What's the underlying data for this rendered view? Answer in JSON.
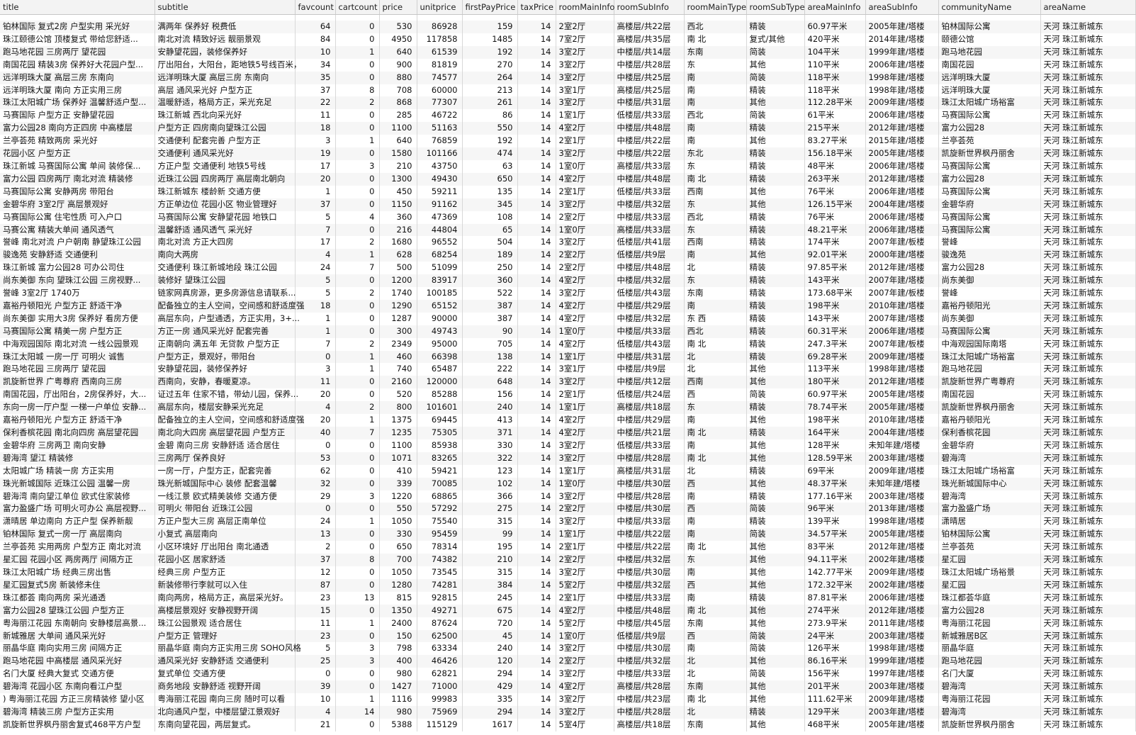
{
  "columns": [
    "title",
    "subtitle",
    "favcount",
    "cartcount",
    "price",
    "unitprice",
    "firstPayPrice",
    "taxPrice",
    "roomMainInfo",
    "roomSubInfo",
    "roomMainType",
    "roomSubType",
    "areaMainInfo",
    "areaSubInfo",
    "communityName",
    "areaName"
  ],
  "rows": [
    [
      "铂林国际 复式2房 户型实用 采光好",
      "满两年 保养好 税费低",
      "64",
      "0",
      "530",
      "86928",
      "159",
      "14",
      "2室2厅",
      "高楼层/共22层",
      "西北",
      "精装",
      "60.97平米",
      "2005年建/塔楼",
      "铂林国际公寓",
      "天河 珠江新城东"
    ],
    [
      "珠江颐德公馆 顶楼复式 带给您舒适...",
      "南北对流 精致好远 靓丽景观",
      "84",
      "0",
      "4950",
      "117858",
      "1485",
      "14",
      "7室2厅",
      "高楼层/共35层",
      "南 北",
      "复式/其他",
      "420平米",
      "2014年建/塔楼",
      "颐德公馆",
      "天河 珠江新城东"
    ],
    [
      "跑马地花园 三房两厅 望花园",
      "安静望花园，装修保养好",
      "10",
      "1",
      "640",
      "61539",
      "192",
      "14",
      "3室2厅",
      "中楼层/共14层",
      "东南",
      "简装",
      "104平米",
      "1999年建/塔楼",
      "跑马地花园",
      "天河 珠江新城东"
    ],
    [
      "南国花园 精装3房 保养好大花园户型...",
      "厅出阳台，大阳台，距地铁5号线百米，",
      "34",
      "0",
      "900",
      "81819",
      "270",
      "14",
      "3室2厅",
      "中楼层/共28层",
      "东",
      "其他",
      "110平米",
      "2006年建/塔楼",
      "南国花园",
      "天河 珠江新城东"
    ],
    [
      "远洋明珠大厦 高层三房 东南向",
      "远洋明珠大厦 高层三房 东南向",
      "35",
      "0",
      "880",
      "74577",
      "264",
      "14",
      "3室2厅",
      "中楼层/共25层",
      "南",
      "简装",
      "118平米",
      "1998年建/塔楼",
      "远洋明珠大厦",
      "天河 珠江新城东"
    ],
    [
      "远洋明珠大厦 南向 方正实用三房",
      "高层 通风采光好 户型方正",
      "37",
      "8",
      "708",
      "60000",
      "213",
      "14",
      "3室1厅",
      "高楼层/共25层",
      "南",
      "精装",
      "118平米",
      "1998年建/塔楼",
      "远洋明珠大厦",
      "天河 珠江新城东"
    ],
    [
      "珠江太阳城广场 保养好 温馨舒适户型...",
      "温暖舒适，格局方正，采光充足",
      "22",
      "2",
      "868",
      "77307",
      "261",
      "14",
      "3室2厅",
      "中楼层/共31层",
      "南",
      "其他",
      "112.28平米",
      "2009年建/塔楼",
      "珠江太阳城广场裕富",
      "天河 珠江新城东"
    ],
    [
      "马赛国际 户型方正 安静望花园",
      "珠江新城 西北向采光好",
      "11",
      "0",
      "285",
      "46722",
      "86",
      "14",
      "1室1厅",
      "低楼层/共33层",
      "西北",
      "简装",
      "61平米",
      "2006年建/塔楼",
      "马赛国际公寓",
      "天河 珠江新城东"
    ],
    [
      "富力公园28 南向方正四房 中高楼层",
      "户型方正 四房南向望珠江公园",
      "18",
      "0",
      "1100",
      "51163",
      "550",
      "14",
      "4室2厅",
      "中楼层/共48层",
      "南",
      "精装",
      "215平米",
      "2012年建/塔楼",
      "富力公园28",
      "天河 珠江新城东"
    ],
    [
      "兰亭荟苑 精致两房 采光好",
      "交通便利 配套完善 户型方正",
      "3",
      "1",
      "640",
      "76859",
      "192",
      "14",
      "2室1厅",
      "中楼层/共22层",
      "南",
      "其他",
      "83.27平米",
      "2015年建/塔楼",
      "兰亭荟苑",
      "天河 珠江新城东"
    ],
    [
      "花园小区 户型方正",
      "交通便利 通风采光好",
      "19",
      "0",
      "1580",
      "101166",
      "474",
      "14",
      "3室2厅",
      "中楼层/共22层",
      "东北",
      "精装",
      "156.18平米",
      "2005年建/塔楼",
      "凯旋新世界枫丹丽舍",
      "天河 珠江新城东"
    ],
    [
      "珠江新城 马赛国际公寓 单间 装修保...",
      "方正户型 交通便利 地铁5号线",
      "17",
      "3",
      "210",
      "43750",
      "63",
      "14",
      "1室0厅",
      "高楼层/共33层",
      "东",
      "精装",
      "48平米",
      "2006年建/塔楼",
      "马赛国际公寓",
      "天河 珠江新城东"
    ],
    [
      "富力公园 四房两厅 南北对流 精装修",
      "近珠江公园 四房两厅 高层南北朝向",
      "20",
      "0",
      "1300",
      "49430",
      "650",
      "14",
      "4室2厅",
      "中楼层/共48层",
      "南 北",
      "精装",
      "263平米",
      "2012年建/塔楼",
      "富力公园28",
      "天河 珠江新城东"
    ],
    [
      "马赛国际公寓 安静两房 带阳台",
      "珠江新城东 楼龄新 交通方便",
      "1",
      "0",
      "450",
      "59211",
      "135",
      "14",
      "2室1厅",
      "低楼层/共33层",
      "西南",
      "其他",
      "76平米",
      "2006年建/塔楼",
      "马赛国际公寓",
      "天河 珠江新城东"
    ],
    [
      "金碧华府 3室2厅 高层景观好",
      "方正单边位 花园小区 物业管理好",
      "37",
      "0",
      "1150",
      "91162",
      "345",
      "14",
      "3室2厅",
      "中楼层/共32层",
      "东",
      "其他",
      "126.15平米",
      "2004年建/塔楼",
      "金碧华府",
      "天河 珠江新城东"
    ],
    [
      "马赛国际公寓 住宅性质 可入户口",
      "马赛国际公寓 安静望花园 地铁口",
      "5",
      "4",
      "360",
      "47369",
      "108",
      "14",
      "2室2厅",
      "中楼层/共33层",
      "西北",
      "精装",
      "76平米",
      "2006年建/塔楼",
      "马赛国际公寓",
      "天河 珠江新城东"
    ],
    [
      "马赛公寓 精装大单间 通风透气",
      "温馨舒适 通风透气 采光好",
      "7",
      "0",
      "216",
      "44804",
      "65",
      "14",
      "1室0厅",
      "高楼层/共33层",
      "东",
      "精装",
      "48.21平米",
      "2006年建/塔楼",
      "马赛国际公寓",
      "天河 珠江新城东"
    ],
    [
      "誉峰 南北对流 户户朝南 静望珠江公园",
      "南北对流 方正大四房",
      "17",
      "2",
      "1680",
      "96552",
      "504",
      "14",
      "3室2厅",
      "低楼层/共41层",
      "西南",
      "精装",
      "174平米",
      "2007年建/板楼",
      "誉峰",
      "天河 珠江新城东"
    ],
    [
      "骏逸苑 安静舒适 交通便利",
      "南向大两房",
      "4",
      "1",
      "628",
      "68254",
      "189",
      "14",
      "2室2厅",
      "低楼层/共9层",
      "南",
      "其他",
      "92.01平米",
      "2000年建/塔楼",
      "骏逸苑",
      "天河 珠江新城东"
    ],
    [
      "珠江新城 富力公园28 可办公司住",
      "交通便利 珠江新城地段 珠江公园",
      "24",
      "7",
      "500",
      "51099",
      "250",
      "14",
      "2室2厅",
      "中楼层/共48层",
      "北",
      "精装",
      "97.85平米",
      "2012年建/塔楼",
      "富力公园28",
      "天河 珠江新城东"
    ],
    [
      "尚东美御 东向 望珠江公园 三房视野...",
      "装修好 望珠江公园",
      "5",
      "0",
      "1200",
      "83917",
      "360",
      "14",
      "4室2厅",
      "中楼层/共32层",
      "东",
      "精装",
      "143平米",
      "2007年建/塔楼",
      "尚东美御",
      "天河 珠江新城东"
    ],
    [
      "誉峰 3室2厅 1740万",
      "链家网真房源，更多房源信息请联系...",
      "5",
      "2",
      "1740",
      "100185",
      "522",
      "14",
      "3室2厅",
      "低楼层/共43层",
      "东南",
      "精装",
      "173.68平米",
      "2007年建/板楼",
      "誉峰",
      "天河 珠江新城东"
    ],
    [
      "嘉裕丹顿阳光 户型方正 舒适干净",
      "配备独立的主人空间，空间感和舒适度强",
      "18",
      "0",
      "1290",
      "65152",
      "387",
      "14",
      "4室2厅",
      "中楼层/共29层",
      "南",
      "精装",
      "198平米",
      "2010年建/塔楼",
      "嘉裕丹顿阳光",
      "天河 珠江新城东"
    ],
    [
      "尚东美御 实用大3房 保养好 看房方便",
      "高层东向，户型通透，方正实用，3+...",
      "1",
      "0",
      "1287",
      "90000",
      "387",
      "14",
      "4室2厅",
      "中楼层/共32层",
      "东 西",
      "精装",
      "143平米",
      "2007年建/塔楼",
      "尚东美御",
      "天河 珠江新城东"
    ],
    [
      "马赛国际公寓 精美一房 户型方正",
      "方正一房 通风采光好 配套完善",
      "1",
      "0",
      "300",
      "49743",
      "90",
      "14",
      "1室0厅",
      "中楼层/共33层",
      "西北",
      "精装",
      "60.31平米",
      "2006年建/塔楼",
      "马赛国际公寓",
      "天河 珠江新城东"
    ],
    [
      "中海观园国际 南北对流 一线公园景观",
      "正南朝向 满五年 无贷款 户型方正",
      "7",
      "2",
      "2349",
      "95000",
      "705",
      "14",
      "4室2厅",
      "低楼层/共43层",
      "南 北",
      "精装",
      "247.3平米",
      "2007年建/板楼",
      "中海观园国际南塔",
      "天河 珠江新城东"
    ],
    [
      "珠江太阳城 一房一厅 可明火 诚售",
      "户型方正，景观好，带阳台",
      "0",
      "1",
      "460",
      "66398",
      "138",
      "14",
      "1室1厅",
      "中楼层/共31层",
      "北",
      "精装",
      "69.28平米",
      "2009年建/塔楼",
      "珠江太阳城广场裕富",
      "天河 珠江新城东"
    ],
    [
      "跑马地花园 三房两厅 望花园",
      "安静望花园，装修保养好",
      "3",
      "1",
      "740",
      "65487",
      "222",
      "14",
      "3室1厅",
      "中楼层/共9层",
      "北",
      "其他",
      "113平米",
      "1998年建/塔楼",
      "跑马地花园",
      "天河 珠江新城东"
    ],
    [
      "凯旋新世界 广粤尊府 西南向三房",
      "西南向，安静，春暖夏凉。",
      "11",
      "0",
      "2160",
      "120000",
      "648",
      "14",
      "3室2厅",
      "中楼层/共12层",
      "西南",
      "其他",
      "180平米",
      "2012年建/塔楼",
      "凯旋新世界广粤尊府",
      "天河 珠江新城东"
    ],
    [
      "南国花园，厅出阳台，2房保养好，大...",
      "证过五年 住家不错，带幼儿园，保养...",
      "20",
      "0",
      "520",
      "85288",
      "156",
      "14",
      "2室1厅",
      "低楼层/共24层",
      "西",
      "简装",
      "60.97平米",
      "2005年建/塔楼",
      "南国花园",
      "天河 珠江新城东"
    ],
    [
      "东向一房一厅户型 一梯一户单位 安静...",
      "高层东向，楼层安静采光充足",
      "4",
      "2",
      "800",
      "101601",
      "240",
      "14",
      "1室1厅",
      "高楼层/共18层",
      "东",
      "精装",
      "78.74平米",
      "2005年建/塔楼",
      "凯旋新世界枫丹丽舍",
      "天河 珠江新城东"
    ],
    [
      "嘉裕丹顿阳光 户型方正 舒适干净",
      "配备独立的主人空间，空间感和舒适度强",
      "20",
      "1",
      "1375",
      "69445",
      "413",
      "14",
      "4室2厅",
      "中楼层/共29层",
      "南",
      "其他",
      "198平米",
      "2010年建/塔楼",
      "嘉裕丹顿阳光",
      "天河 珠江新城东"
    ],
    [
      "保利香槟花园 南北向四房 高层望花园",
      "南北向大四房 高层望花园 户型方正",
      "40",
      "7",
      "1235",
      "75305",
      "371",
      "14",
      "4室2厅",
      "中楼层/共21层",
      "南 北",
      "精装",
      "164平米",
      "2004年建/塔楼",
      "保利香槟花园",
      "天河 珠江新城东"
    ],
    [
      "金碧华府 三房两卫 南向安静",
      "金碧 南向三房 安静舒适 适合居住",
      "0",
      "0",
      "1100",
      "85938",
      "330",
      "14",
      "3室2厅",
      "低楼层/共33层",
      "南",
      "其他",
      "128平米",
      "未知年建/塔楼",
      "金碧华府",
      "天河 珠江新城东"
    ],
    [
      "碧海湾 望江 精装修",
      "三房两厅 保养良好",
      "53",
      "0",
      "1071",
      "83265",
      "322",
      "14",
      "3室2厅",
      "中楼层/共28层",
      "南 北",
      "其他",
      "128.59平米",
      "2003年建/塔楼",
      "碧海湾",
      "天河 珠江新城东"
    ],
    [
      "太阳城广场 精装一房 方正实用",
      "一房一厅，户型方正，配套完善",
      "62",
      "0",
      "410",
      "59421",
      "123",
      "14",
      "1室1厅",
      "高楼层/共31层",
      "北",
      "精装",
      "69平米",
      "2009年建/塔楼",
      "珠江太阳城广场裕富",
      "天河 珠江新城东"
    ],
    [
      "珠光新城国际 近珠江公园 温馨一房",
      "珠光新城国际中心 装修 配套温馨",
      "32",
      "0",
      "339",
      "70085",
      "102",
      "14",
      "1室0厅",
      "中楼层/共30层",
      "西",
      "其他",
      "48.37平米",
      "未知年建/塔楼",
      "珠光新城国际中心",
      "天河 珠江新城东"
    ],
    [
      "碧海湾 南向望江单位 欧式住家装修",
      "一线江景 欧式精美装修 交通方便",
      "29",
      "3",
      "1220",
      "68865",
      "366",
      "14",
      "3室2厅",
      "中楼层/共28层",
      "南",
      "精装",
      "177.16平米",
      "2003年建/塔楼",
      "碧海湾",
      "天河 珠江新城东"
    ],
    [
      "富力盈盛广场 可明火可办公 高层视野...",
      "可明火 带阳台 近珠江公园",
      "0",
      "0",
      "550",
      "57292",
      "275",
      "14",
      "2室2厅",
      "中楼层/共30层",
      "西",
      "简装",
      "96平米",
      "2013年建/塔楼",
      "富力盈盛广场",
      "天河 珠江新城东"
    ],
    [
      "潇晴居 单边南向 方正户型 保养新靓",
      "方正户型大三房 高层正南单位",
      "24",
      "1",
      "1050",
      "75540",
      "315",
      "14",
      "3室2厅",
      "中楼层/共33层",
      "南",
      "精装",
      "139平米",
      "1998年建/塔楼",
      "潇晴居",
      "天河 珠江新城东"
    ],
    [
      "铂林国际 复式一房一厅 高层南向",
      "小复式 高层南向",
      "13",
      "0",
      "330",
      "95459",
      "99",
      "14",
      "1室1厅",
      "中楼层/共22层",
      "南",
      "简装",
      "34.57平米",
      "2005年建/塔楼",
      "铂林国际公寓",
      "天河 珠江新城东"
    ],
    [
      "兰亭荟苑 实用两房 户型方正 南北对流",
      "小区环境好 厅出阳台 南北通透",
      "2",
      "0",
      "650",
      "78314",
      "195",
      "14",
      "2室1厅",
      "中楼层/共22层",
      "南 北",
      "其他",
      "83平米",
      "2012年建/塔楼",
      "兰亭荟苑",
      "天河 珠江新城东"
    ],
    [
      "星汇园 花园小区 两房两厅 间隔方正",
      "花园小区 居家舒适",
      "37",
      "8",
      "700",
      "74382",
      "210",
      "14",
      "2室2厅",
      "中楼层/共32层",
      "东",
      "其他",
      "94.11平米",
      "2002年建/塔楼",
      "星汇园",
      "天河 珠江新城东"
    ],
    [
      "珠江太阳城广场 经典三房出售",
      "经典三房 户型方正",
      "12",
      "0",
      "1050",
      "73545",
      "315",
      "14",
      "3室2厅",
      "中楼层/共30层",
      "南",
      "其他",
      "142.77平米",
      "2009年建/塔楼",
      "珠江太阳城广场裕景",
      "天河 珠江新城东"
    ],
    [
      "星汇园复式5房 新装修未住",
      "新装修带行李就可以入住",
      "87",
      "0",
      "1280",
      "74281",
      "384",
      "14",
      "5室2厅",
      "中楼层/共32层",
      "西",
      "其他",
      "172.32平米",
      "2002年建/塔楼",
      "星汇园",
      "天河 珠江新城东"
    ],
    [
      "珠江都荟 南向两房 采光通透",
      "南向两房，格局方正，高层采光好。",
      "23",
      "13",
      "815",
      "92815",
      "245",
      "14",
      "2室1厅",
      "中楼层/共33层",
      "南",
      "精装",
      "87.81平米",
      "2006年建/塔楼",
      "珠江都荟华庭",
      "天河 珠江新城东"
    ],
    [
      "富力公园28 望珠江公园 户型方正",
      "高楼层景观好 安静视野开阔",
      "15",
      "0",
      "1350",
      "49271",
      "675",
      "14",
      "4室2厅",
      "中楼层/共48层",
      "南 北",
      "其他",
      "274平米",
      "2012年建/塔楼",
      "富力公园28",
      "天河 珠江新城东"
    ],
    [
      "粤海丽江花园 东南朝向 安静楼层高景...",
      "珠江公园景观 适合居住",
      "11",
      "1",
      "2400",
      "87624",
      "720",
      "14",
      "5室2厅",
      "中楼层/共45层",
      "东南",
      "其他",
      "273.9平米",
      "2011年建/塔楼",
      "粤海丽江花园",
      "天河 珠江新城东"
    ],
    [
      "新城雅居 大单间 通风采光好",
      "户型方正 管理好",
      "23",
      "0",
      "150",
      "62500",
      "45",
      "14",
      "1室0厅",
      "低楼层/共9层",
      "西",
      "简装",
      "24平米",
      "2003年建/塔楼",
      "新城雅居B区",
      "天河 珠江新城东"
    ],
    [
      "丽晶华庭 南向实用三房 间隔方正",
      "丽晶华庭 南向方正实用三房 SOHO风格",
      "5",
      "3",
      "798",
      "63334",
      "240",
      "14",
      "3室2厅",
      "中楼层/共30层",
      "南",
      "简装",
      "126平米",
      "1998年建/塔楼",
      "丽晶华庭",
      "天河 珠江新城东"
    ],
    [
      "跑马地花园 中高楼层 通风采光好",
      "通风采光好 安静舒适 交通便利",
      "25",
      "3",
      "400",
      "46426",
      "120",
      "14",
      "2室2厅",
      "中楼层/共32层",
      "北",
      "其他",
      "86.16平米",
      "1999年建/塔楼",
      "跑马地花园",
      "天河 珠江新城东"
    ],
    [
      "名门大厦 经典大复式 交通方便",
      "复式单位 交通方便",
      "0",
      "0",
      "980",
      "62821",
      "294",
      "14",
      "3室2厅",
      "中楼层/共33层",
      "北",
      "简装",
      "156平米",
      "1997年建/塔楼",
      "名门大厦",
      "天河 珠江新城东"
    ],
    [
      "碧海湾 花园小区 东南向看江户型",
      "商务地段 安静舒适 视野开阔",
      "39",
      "0",
      "1427",
      "71000",
      "429",
      "14",
      "4室2厅",
      "高楼层/共28层",
      "东南",
      "其他",
      "201平米",
      "2003年建/塔楼",
      "碧海湾",
      "天河 珠江新城东"
    ],
    [
      ") 粤海丽江花园 方正三房精装修 望小区",
      "粤海丽江花园 南向三房 随时可以看",
      "10",
      "1",
      "1116",
      "99983",
      "335",
      "14",
      "3室2厅",
      "中楼层/共23层",
      "南 北",
      "其他",
      "111.62平米",
      "2009年建/塔楼",
      "粤海丽江花园",
      "天河 珠江新城东"
    ],
    [
      "碧海湾 精装三房 户型方正实用",
      "北向通风户型，中楼层望江景观好",
      "4",
      "14",
      "980",
      "75969",
      "294",
      "14",
      "3室2厅",
      "中楼层/共28层",
      "北",
      "精装",
      "129平米",
      "2003年建/塔楼",
      "碧海湾",
      "天河 珠江新城东"
    ],
    [
      "凯旋新世界枫丹丽舍复式468平方户型",
      "东南向望花园，两层复式。",
      "21",
      "0",
      "5388",
      "115129",
      "1617",
      "14",
      "5室4厅",
      "高楼层/共18层",
      "东南",
      "其他",
      "468平米",
      "2005年建/塔楼",
      "凯旋新世界枫丹丽舍",
      "天河 珠江新城东"
    ]
  ]
}
